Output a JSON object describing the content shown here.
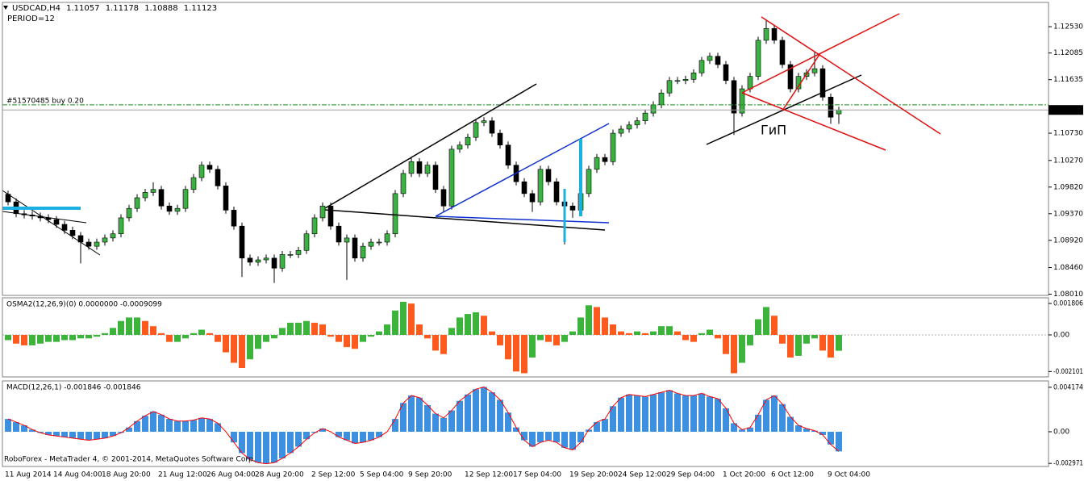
{
  "chart_data": [
    {
      "type": "candlestick",
      "title": "USDCAD,H4",
      "subtitle": "PERIOD=12",
      "annotations": [
        "#51570485 buy 0.20",
        "ГиП"
      ],
      "footer": "RoboForex - MetaTrader 4, © 2001-2014, MetaQuotes Software Corp.",
      "order_price": 1.1121,
      "order_color": "#1a8f1a",
      "up_color": "#3cb043",
      "down_color": "#000000",
      "wick_color": "#000000",
      "ylim": [
        1.0799,
        1.1294
      ],
      "yticks": [
        {
          "value": 1.1253,
          "label": "1.12530"
        },
        1.12085,
        1.11635,
        {
          "value": 1.1073,
          "label": "1.10730"
        },
        {
          "value": 1.1027,
          "label": "1.10270"
        },
        {
          "value": 1.0982,
          "label": "1.09820"
        },
        {
          "value": 1.0937,
          "label": "1.09370"
        },
        {
          "value": 1.0892,
          "label": "1.08920"
        },
        {
          "value": 1.0846,
          "label": "1.08460"
        },
        {
          "value": 1.0801,
          "label": "1.08010"
        }
      ],
      "categories": [
        "11 Aug 2014",
        null,
        null,
        null,
        null,
        null,
        "14 Aug 04:00",
        null,
        null,
        null,
        null,
        null,
        "18 Aug 20:00",
        null,
        null,
        null,
        null,
        null,
        null,
        "21 Aug 12:00",
        null,
        null,
        null,
        null,
        null,
        "26 Aug 04:00",
        null,
        null,
        null,
        null,
        null,
        "28 Aug 20:00",
        null,
        null,
        null,
        null,
        null,
        null,
        "2 Sep 12:00",
        null,
        null,
        null,
        null,
        null,
        "5 Sep 04:00",
        null,
        null,
        null,
        null,
        null,
        "9 Sep 20:00",
        null,
        null,
        null,
        null,
        null,
        null,
        "12 Sep 12:00",
        null,
        null,
        null,
        null,
        null,
        "17 Sep 04:00",
        null,
        null,
        null,
        null,
        null,
        null,
        "19 Sep 20:00",
        null,
        null,
        null,
        null,
        null,
        "24 Sep 12:00",
        null,
        null,
        null,
        null,
        null,
        "29 Sep 04:00",
        null,
        null,
        null,
        null,
        null,
        null,
        "1 Oct 20:00",
        null,
        null,
        null,
        null,
        null,
        "6 Oct 12:00",
        null,
        null,
        null,
        null,
        null,
        null,
        "9 Oct 04:00",
        null
      ],
      "open": [
        1.097,
        1.0957,
        1.0937,
        1.0935,
        1.0933,
        1.093,
        1.0927,
        1.0919,
        1.0909,
        1.09,
        1.0889,
        1.0882,
        1.0889,
        1.0896,
        1.0903,
        1.093,
        1.0946,
        1.0964,
        1.0973,
        1.0978,
        1.095,
        1.0941,
        1.0946,
        1.0978,
        1.0998,
        1.1019,
        1.1012,
        1.0984,
        1.0943,
        1.0916,
        1.0862,
        1.0855,
        1.0859,
        1.0862,
        1.0845,
        1.0868,
        1.0868,
        1.0875,
        1.0903,
        1.093,
        1.095,
        1.0916,
        1.0889,
        1.0896,
        1.0862,
        1.0882,
        1.0889,
        1.0889,
        1.0903,
        1.0971,
        1.1005,
        1.1025,
        1.1005,
        1.1019,
        1.0978,
        1.095,
        1.1046,
        1.1053,
        1.1066,
        1.1091,
        1.1094,
        1.1073,
        1.1053,
        1.1019,
        1.0991,
        1.0971,
        1.0957,
        1.1012,
        1.0991,
        1.0957,
        1.095,
        1.0943,
        1.0971,
        1.1012,
        1.1032,
        1.1025,
        1.1073,
        1.108,
        1.1087,
        1.1094,
        1.1107,
        1.1121,
        1.1141,
        1.1162,
        1.1162,
        1.1164,
        1.1175,
        1.1196,
        1.1203,
        1.1189,
        1.1162,
        1.1107,
        1.1148,
        1.1169,
        1.123,
        1.125,
        1.123,
        1.1189,
        1.1148,
        1.1169,
        1.1175,
        1.1182,
        1.1134,
        1.11057
      ],
      "high": [
        1.0976,
        1.0963,
        1.0943,
        1.0941,
        1.0939,
        1.0936,
        1.0933,
        1.0925,
        1.0915,
        1.0906,
        1.0895,
        1.0895,
        1.0902,
        1.0909,
        1.0936,
        1.0952,
        1.097,
        1.0979,
        1.099,
        1.0984,
        1.0956,
        1.0952,
        1.0984,
        1.1004,
        1.1025,
        1.1025,
        1.1018,
        1.099,
        1.0949,
        1.0922,
        1.0868,
        1.0865,
        1.0868,
        1.0868,
        1.0874,
        1.0874,
        1.0881,
        1.0909,
        1.0936,
        1.0956,
        1.0956,
        1.0922,
        1.0902,
        1.0902,
        1.0888,
        1.0895,
        1.0895,
        1.0909,
        1.0977,
        1.1011,
        1.1031,
        1.1031,
        1.1025,
        1.1025,
        1.0984,
        1.1052,
        1.1059,
        1.1072,
        1.1097,
        1.11,
        1.11,
        1.1079,
        1.1059,
        1.1025,
        1.0997,
        1.0977,
        1.1018,
        1.1018,
        1.0997,
        1.0963,
        1.0956,
        1.0977,
        1.1018,
        1.1038,
        1.1038,
        1.1079,
        1.1086,
        1.1093,
        1.11,
        1.1113,
        1.1127,
        1.1147,
        1.1168,
        1.1168,
        1.117,
        1.1181,
        1.1202,
        1.1209,
        1.1209,
        1.1195,
        1.1168,
        1.1154,
        1.1175,
        1.1236,
        1.1265,
        1.1256,
        1.1236,
        1.1195,
        1.1175,
        1.1181,
        1.121,
        1.1188,
        1.114,
        1.11178
      ],
      "low": [
        1.0951,
        1.0931,
        1.0929,
        1.0927,
        1.0924,
        1.0921,
        1.0913,
        1.0903,
        1.0894,
        1.0853,
        1.0876,
        1.0876,
        1.0883,
        1.089,
        1.0897,
        1.0924,
        1.094,
        1.0958,
        1.0967,
        1.0944,
        1.0935,
        1.0935,
        1.094,
        1.0972,
        1.0992,
        1.1006,
        1.0978,
        1.0937,
        1.091,
        1.083,
        1.0849,
        1.0849,
        1.0853,
        1.082,
        1.0839,
        1.0862,
        1.0862,
        1.0869,
        1.0897,
        1.0924,
        1.091,
        1.0883,
        1.0825,
        1.0856,
        1.0856,
        1.0876,
        1.0883,
        1.0883,
        1.0897,
        1.0965,
        1.0999,
        1.0999,
        1.0999,
        1.0972,
        1.094,
        1.0944,
        1.104,
        1.1047,
        1.106,
        1.1085,
        1.1067,
        1.1047,
        1.1013,
        1.0985,
        1.0965,
        1.094,
        1.0951,
        1.0985,
        1.0951,
        1.0885,
        1.093,
        1.0937,
        1.0965,
        1.1006,
        1.1019,
        1.1019,
        1.1067,
        1.1074,
        1.1081,
        1.1088,
        1.1101,
        1.1115,
        1.1135,
        1.1156,
        1.1156,
        1.1158,
        1.1169,
        1.119,
        1.1183,
        1.1156,
        1.107,
        1.1101,
        1.1142,
        1.1163,
        1.1224,
        1.1224,
        1.1183,
        1.1142,
        1.1142,
        1.1163,
        1.1169,
        1.1128,
        1.1089,
        1.10888
      ],
      "close": [
        1.0957,
        1.0937,
        1.0935,
        1.0933,
        1.093,
        1.0927,
        1.0919,
        1.0909,
        1.09,
        1.0889,
        1.0882,
        1.0889,
        1.0896,
        1.0903,
        1.093,
        1.0946,
        1.0964,
        1.0973,
        1.0978,
        1.095,
        1.0941,
        1.0946,
        1.0978,
        1.0998,
        1.1019,
        1.1012,
        1.0984,
        1.0943,
        1.0916,
        1.0862,
        1.0855,
        1.0859,
        1.0862,
        1.0845,
        1.0868,
        1.0868,
        1.0875,
        1.0903,
        1.093,
        1.095,
        1.0916,
        1.0889,
        1.0896,
        1.0862,
        1.0882,
        1.0889,
        1.0889,
        1.0903,
        1.0971,
        1.1005,
        1.1025,
        1.1005,
        1.1019,
        1.0978,
        1.095,
        1.1046,
        1.1053,
        1.1066,
        1.1091,
        1.1094,
        1.1073,
        1.1053,
        1.1019,
        1.0991,
        1.0971,
        1.0957,
        1.1012,
        1.0991,
        1.0957,
        1.095,
        1.0943,
        1.0971,
        1.1012,
        1.1032,
        1.1025,
        1.1073,
        1.108,
        1.1087,
        1.1094,
        1.1107,
        1.1121,
        1.1141,
        1.1162,
        1.1162,
        1.1164,
        1.1175,
        1.1196,
        1.1203,
        1.1189,
        1.1162,
        1.1107,
        1.1148,
        1.1169,
        1.123,
        1.125,
        1.123,
        1.1189,
        1.1148,
        1.1169,
        1.1175,
        1.1182,
        1.1134,
        1.11,
        1.11123
      ]
    },
    {
      "type": "osma",
      "title": "OSMA2(12,26,9)(0) 0.0000000 -0.0009099",
      "up_color": "#3cb43c",
      "down_color": "#ff5a1e",
      "zero_line": true,
      "ylim": [
        -0.00241,
        0.00213
      ],
      "yticks": [
        0.001806,
        {
          "value": 0,
          "label": "0.00"
        },
        -0.002101
      ],
      "values": [
        -0.0003,
        -0.0005,
        -0.0006,
        -0.0006,
        -0.0005,
        -0.0004,
        -0.0004,
        -0.0003,
        -0.0003,
        -0.0002,
        -0.0002,
        -0.0001,
        0.0001,
        0.0004,
        0.0008,
        0.001,
        0.001,
        0.0008,
        0.0005,
        0.0001,
        -0.0004,
        -0.0004,
        -0.0002,
        0.0001,
        0.0003,
        0.0001,
        -0.0004,
        -0.001,
        -0.0016,
        -0.0019,
        -0.0014,
        -0.0008,
        -0.0004,
        -0.0002,
        0.0004,
        0.0007,
        0.0007,
        0.0008,
        0.0007,
        0.0006,
        -0.0001,
        -0.0004,
        -0.0007,
        -0.0008,
        -0.0004,
        -0.0001,
        0.0002,
        0.0006,
        0.0014,
        0.0019,
        0.0018,
        0.0006,
        -0.0002,
        -0.0009,
        -0.0011,
        0.0004,
        0.001,
        0.0012,
        0.0013,
        0.0011,
        0.0002,
        -0.0006,
        -0.0014,
        -0.0021,
        -0.0022,
        -0.0013,
        -0.0003,
        -0.0004,
        -0.0006,
        -0.0004,
        0.0002,
        0.001,
        0.0017,
        0.0016,
        0.001,
        0.0006,
        0.0002,
        0.0001,
        0.0002,
        0.0001,
        0.0002,
        0.0005,
        0.0005,
        0.0002,
        -0.0003,
        -0.0004,
        0.0001,
        0.0003,
        -0.0002,
        -0.0011,
        -0.0022,
        -0.0016,
        -0.0006,
        0.0009,
        0.0016,
        0.0011,
        -0.0005,
        -0.0013,
        -0.0012,
        -0.0005,
        -0.0002,
        -0.0009,
        -0.0013,
        -0.0009099
      ]
    },
    {
      "type": "macd",
      "title": "MACD(12,26,1) -0.001846 -0.001846",
      "color": "#3d8fe0",
      "signal_color": "#ff0000",
      "ylim": [
        -0.00326,
        0.00477
      ],
      "yticks": [
        0.004174,
        {
          "value": 0,
          "label": "0.00"
        },
        -0.002971
      ],
      "values": [
        0.0012,
        0.0009,
        0.0006,
        0.0002,
        -0.0001,
        -0.0003,
        -0.0004,
        -0.0005,
        -0.0006,
        -0.0007,
        -0.0008,
        -0.0007,
        -0.0006,
        -0.0004,
        -0.0001,
        0.0004,
        0.001,
        0.0015,
        0.0019,
        0.0016,
        0.0012,
        0.001,
        0.001,
        0.0011,
        0.0013,
        0.0012,
        0.0008,
        0.0,
        -0.001,
        -0.002,
        -0.0026,
        -0.0029,
        -0.003,
        -0.0029,
        -0.0025,
        -0.002,
        -0.0014,
        -0.0007,
        -0.0001,
        0.0003,
        0.0,
        -0.0005,
        -0.0008,
        -0.0011,
        -0.001,
        -0.0008,
        -0.0005,
        0.0,
        0.0012,
        0.0027,
        0.0034,
        0.0032,
        0.0025,
        0.0017,
        0.0013,
        0.002,
        0.0029,
        0.0035,
        0.004,
        0.0042,
        0.0037,
        0.003,
        0.0018,
        0.0004,
        -0.0008,
        -0.0014,
        -0.001,
        -0.0008,
        -0.001,
        -0.0015,
        -0.0017,
        -0.001,
        0.0002,
        0.0009,
        0.0012,
        0.0024,
        0.0032,
        0.0035,
        0.0034,
        0.0033,
        0.0035,
        0.0037,
        0.0039,
        0.0036,
        0.0034,
        0.0034,
        0.0036,
        0.0033,
        0.0031,
        0.0022,
        0.0008,
        0.0002,
        0.0004,
        0.0016,
        0.003,
        0.0034,
        0.0026,
        0.0014,
        0.0006,
        0.0003,
        0.0001,
        -0.0003,
        -0.0012,
        -0.001846
      ]
    }
  ]
}
